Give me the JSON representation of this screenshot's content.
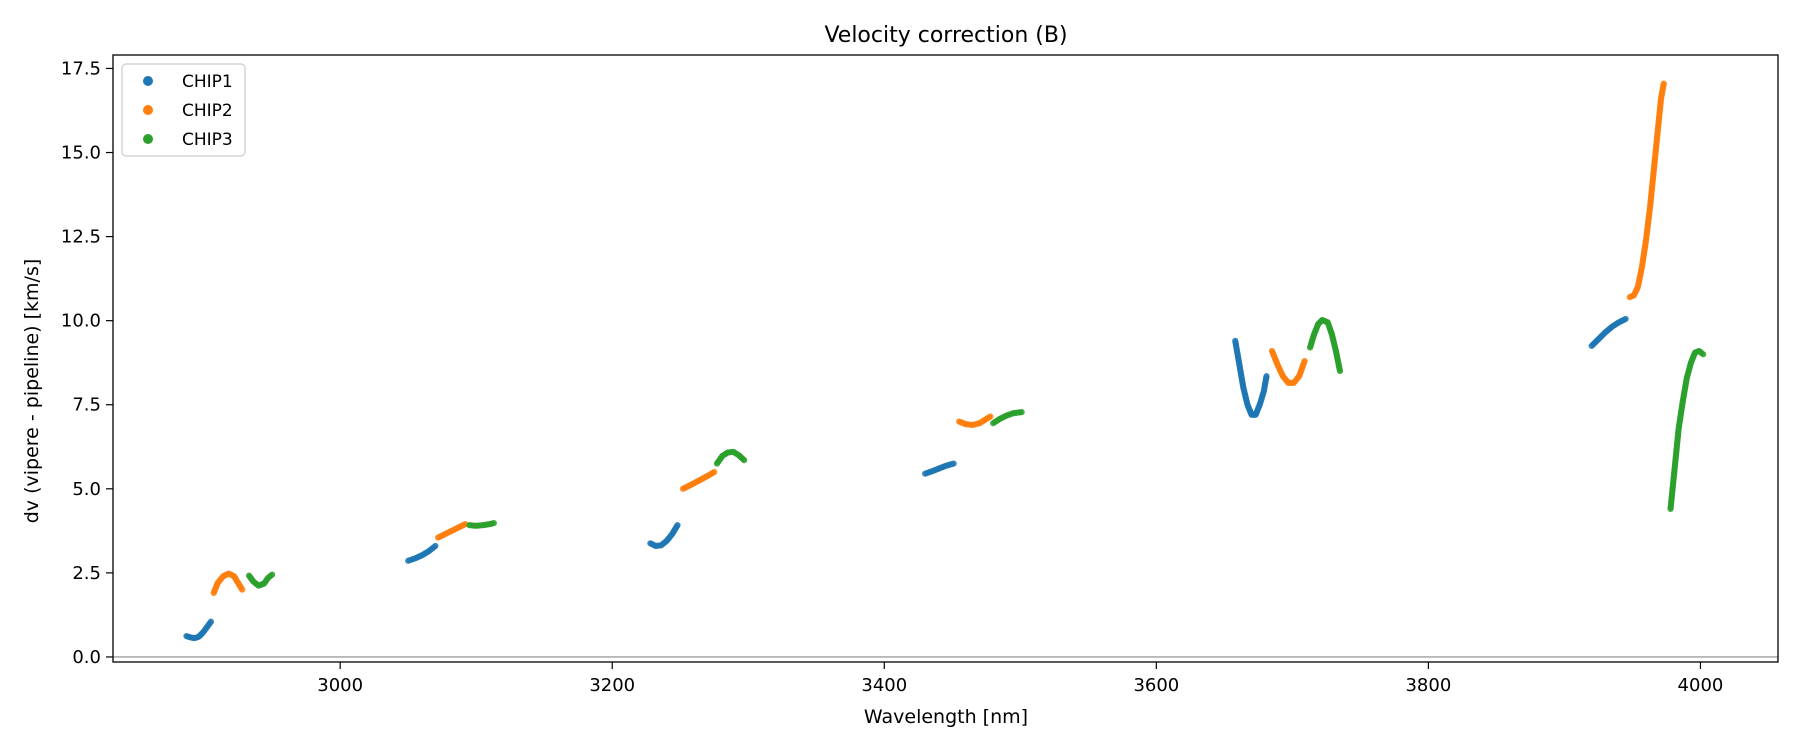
{
  "chart_data": {
    "type": "scatter",
    "title": "Velocity correction (B)",
    "xlabel": "Wavelength [nm]",
    "ylabel": "dv (vipere - pipeline) [km/s]",
    "xlim": [
      2833,
      4057
    ],
    "ylim": [
      -0.15,
      17.9
    ],
    "xticks": [
      3000,
      3200,
      3400,
      3600,
      3800,
      4000
    ],
    "yticks": [
      0.0,
      2.5,
      5.0,
      7.5,
      10.0,
      12.5,
      15.0,
      17.5
    ],
    "xtick_labels": [
      "3000",
      "3200",
      "3400",
      "3600",
      "3800",
      "4000"
    ],
    "ytick_labels": [
      "0.0",
      "2.5",
      "5.0",
      "7.5",
      "10.0",
      "12.5",
      "15.0",
      "17.5"
    ],
    "reference_line_y": 0,
    "legend_position": "upper-left",
    "series": [
      {
        "name": "CHIP1",
        "color": "#1f77b4",
        "segments": [
          [
            [
              2887,
              0.62
            ],
            [
              2890,
              0.58
            ],
            [
              2893,
              0.56
            ],
            [
              2896,
              0.6
            ],
            [
              2899,
              0.72
            ],
            [
              2902,
              0.88
            ],
            [
              2905,
              1.05
            ]
          ],
          [
            [
              3050,
              2.86
            ],
            [
              3055,
              2.93
            ],
            [
              3060,
              3.02
            ],
            [
              3065,
              3.14
            ],
            [
              3070,
              3.3
            ]
          ],
          [
            [
              3228,
              3.38
            ],
            [
              3232,
              3.3
            ],
            [
              3236,
              3.32
            ],
            [
              3240,
              3.45
            ],
            [
              3244,
              3.65
            ],
            [
              3248,
              3.92
            ]
          ],
          [
            [
              3430,
              5.45
            ],
            [
              3435,
              5.52
            ],
            [
              3440,
              5.6
            ],
            [
              3445,
              5.68
            ],
            [
              3451,
              5.75
            ]
          ],
          [
            [
              3658,
              9.4
            ],
            [
              3661,
              8.7
            ],
            [
              3664,
              8.0
            ],
            [
              3667,
              7.5
            ],
            [
              3670,
              7.2
            ],
            [
              3673,
              7.2
            ],
            [
              3676,
              7.5
            ],
            [
              3679,
              7.9
            ],
            [
              3681,
              8.35
            ]
          ],
          [
            [
              3920,
              9.25
            ],
            [
              3925,
              9.45
            ],
            [
              3930,
              9.65
            ],
            [
              3935,
              9.82
            ],
            [
              3940,
              9.95
            ],
            [
              3945,
              10.05
            ]
          ]
        ]
      },
      {
        "name": "CHIP2",
        "color": "#ff7f0e",
        "segments": [
          [
            [
              2907,
              1.9
            ],
            [
              2910,
              2.2
            ],
            [
              2914,
              2.4
            ],
            [
              2918,
              2.48
            ],
            [
              2922,
              2.4
            ],
            [
              2925,
              2.2
            ],
            [
              2928,
              2.0
            ]
          ],
          [
            [
              3072,
              3.55
            ],
            [
              3077,
              3.65
            ],
            [
              3082,
              3.75
            ],
            [
              3087,
              3.85
            ],
            [
              3092,
              3.95
            ]
          ],
          [
            [
              3252,
              5.0
            ],
            [
              3258,
              5.12
            ],
            [
              3264,
              5.25
            ],
            [
              3270,
              5.38
            ],
            [
              3275,
              5.5
            ]
          ],
          [
            [
              3455,
              7.0
            ],
            [
              3460,
              6.92
            ],
            [
              3465,
              6.9
            ],
            [
              3470,
              6.95
            ],
            [
              3474,
              7.05
            ],
            [
              3478,
              7.15
            ]
          ],
          [
            [
              3685,
              9.1
            ],
            [
              3689,
              8.7
            ],
            [
              3693,
              8.35
            ],
            [
              3697,
              8.15
            ],
            [
              3701,
              8.15
            ],
            [
              3705,
              8.35
            ],
            [
              3709,
              8.8
            ]
          ],
          [
            [
              3948,
              10.7
            ],
            [
              3951,
              10.75
            ],
            [
              3954,
              11.0
            ],
            [
              3957,
              11.6
            ],
            [
              3960,
              12.4
            ],
            [
              3963,
              13.4
            ],
            [
              3966,
              14.6
            ],
            [
              3969,
              15.8
            ],
            [
              3971,
              16.6
            ],
            [
              3973,
              17.05
            ]
          ]
        ]
      },
      {
        "name": "CHIP3",
        "color": "#2ca02c",
        "segments": [
          [
            [
              2933,
              2.42
            ],
            [
              2936,
              2.25
            ],
            [
              2940,
              2.12
            ],
            [
              2944,
              2.18
            ],
            [
              2947,
              2.35
            ],
            [
              2950,
              2.45
            ]
          ],
          [
            [
              3095,
              3.92
            ],
            [
              3100,
              3.9
            ],
            [
              3105,
              3.92
            ],
            [
              3110,
              3.95
            ],
            [
              3113,
              3.98
            ]
          ],
          [
            [
              3277,
              5.75
            ],
            [
              3281,
              5.98
            ],
            [
              3285,
              6.08
            ],
            [
              3289,
              6.1
            ],
            [
              3293,
              6.0
            ],
            [
              3297,
              5.85
            ]
          ],
          [
            [
              3480,
              6.95
            ],
            [
              3485,
              7.08
            ],
            [
              3490,
              7.18
            ],
            [
              3495,
              7.25
            ],
            [
              3501,
              7.28
            ]
          ],
          [
            [
              3713,
              9.2
            ],
            [
              3716,
              9.6
            ],
            [
              3719,
              9.9
            ],
            [
              3722,
              10.02
            ],
            [
              3726,
              9.95
            ],
            [
              3729,
              9.6
            ],
            [
              3732,
              9.1
            ],
            [
              3735,
              8.5
            ]
          ],
          [
            [
              3978,
              4.4
            ],
            [
              3980,
              5.2
            ],
            [
              3982,
              6.0
            ],
            [
              3984,
              6.8
            ],
            [
              3987,
              7.6
            ],
            [
              3990,
              8.3
            ],
            [
              3993,
              8.75
            ],
            [
              3996,
              9.05
            ],
            [
              3999,
              9.1
            ],
            [
              4002,
              9.0
            ]
          ]
        ]
      }
    ]
  }
}
